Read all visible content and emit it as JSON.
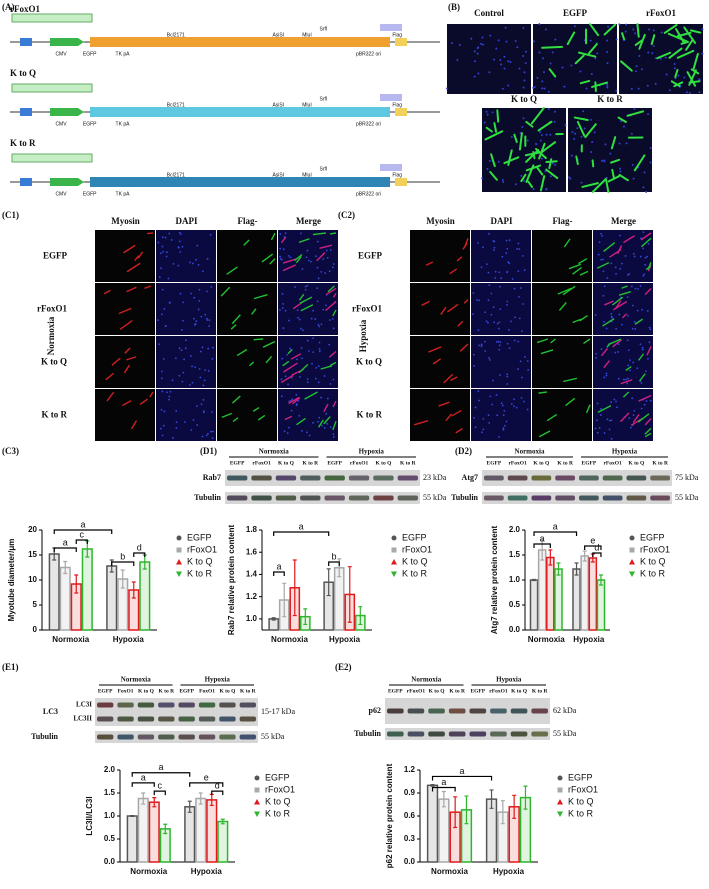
{
  "panel_labels": {
    "A": "(A)",
    "B": "(B)",
    "C1": "(C1)",
    "C2": "(C2)",
    "C3": "(C3)",
    "D1": "(D1)",
    "D2": "(D2)",
    "E1": "(E1)",
    "E2": "(E2)"
  },
  "plasmid_maps": [
    {
      "name": "rFoxO1",
      "features": [
        "Bcl2171",
        "AsiSI",
        "MluI",
        "SrfI",
        "CMV",
        "EGFP",
        "TK pA",
        "pBR322 ori",
        "Flag"
      ]
    },
    {
      "name": "K to Q",
      "features": [
        "Bcl2171",
        "AsiSI",
        "MluI",
        "SrfI",
        "CMV",
        "EGFP",
        "TK pA",
        "pBR322 ori",
        "Flag"
      ]
    },
    {
      "name": "K to R",
      "features": [
        "Bcl2171",
        "AsiSI",
        "MluI",
        "SrfI",
        "CMV",
        "EGFP",
        "TK pA",
        "pBR322 ori",
        "Flag"
      ]
    }
  ],
  "microscopy": {
    "labels": [
      "Control",
      "EGFP",
      "rFoxO1",
      "K to Q",
      "K to R"
    ]
  },
  "immunofluorescence": [
    {
      "condition": "Normoxia",
      "columns": [
        "Myosin",
        "DAPI",
        "Flag-",
        "Merge"
      ],
      "rows": [
        "EGFP",
        "rFoxO1",
        "K to Q",
        "K to R"
      ]
    },
    {
      "condition": "Hypoxia",
      "columns": [
        "Myosin",
        "DAPI",
        "Flag-",
        "Merge"
      ],
      "rows": [
        "EGFP",
        "rFoxO1",
        "K to Q",
        "K to R"
      ]
    }
  ],
  "chart_data": [
    {
      "type": "bar",
      "ylabel": "Myotube diameter/μm",
      "categories": [
        "Normoxia",
        "Hypoxia"
      ],
      "series": [
        {
          "name": "EGFP",
          "color": "#555555",
          "values": [
            15.2,
            12.8
          ],
          "errors": [
            1.2,
            1.2
          ]
        },
        {
          "name": "rFoxO1",
          "color": "#a8a8a8",
          "values": [
            12.5,
            10.2
          ],
          "errors": [
            1.2,
            1.8
          ]
        },
        {
          "name": "K to Q",
          "color": "#e0191b",
          "values": [
            9.2,
            8.0
          ],
          "errors": [
            1.8,
            1.6
          ]
        },
        {
          "name": "K to R",
          "color": "#2db52d",
          "values": [
            16.2,
            13.6
          ],
          "errors": [
            1.6,
            1.4
          ]
        }
      ],
      "ylim": [
        0,
        20
      ],
      "yticks": [
        0,
        5,
        10,
        15,
        20
      ],
      "annotations": [
        "a",
        "a",
        "c",
        "b",
        "d"
      ]
    },
    {
      "type": "bar",
      "ylabel": "Rab7 relative protein content",
      "categories": [
        "Normoxia",
        "Hypoxia"
      ],
      "series": [
        {
          "name": "EGFP",
          "color": "#555555",
          "values": [
            1.0,
            1.33
          ],
          "errors": [
            0.01,
            0.12
          ]
        },
        {
          "name": "rFoxO1",
          "color": "#a8a8a8",
          "values": [
            1.17,
            1.46
          ],
          "errors": [
            0.15,
            0.08
          ]
        },
        {
          "name": "K to Q",
          "color": "#e0191b",
          "values": [
            1.28,
            1.22
          ],
          "errors": [
            0.25,
            0.25
          ]
        },
        {
          "name": "K to R",
          "color": "#2db52d",
          "values": [
            1.02,
            1.03
          ],
          "errors": [
            0.07,
            0.08
          ]
        }
      ],
      "ylim": [
        0.9,
        1.8
      ],
      "yticks": [
        {
          "value": 1.0,
          "label": "1.0"
        },
        1.2,
        1.4,
        1.6,
        1.8
      ],
      "annotations": [
        "a",
        "a",
        "b"
      ],
      "blot": {
        "groups": [
          "Normoxia",
          "Hypoxia"
        ],
        "lanes": [
          "EGFP",
          "rFoxO1",
          "K to Q",
          "K to R",
          "EGFP",
          "rFoxO1",
          "K to Q",
          "K to R"
        ],
        "bands": [
          "Rab7",
          "Tubulin"
        ],
        "sizes": [
          "23 kDa",
          "55 kDa"
        ]
      }
    },
    {
      "type": "bar",
      "ylabel": "Atg7 relative protein content",
      "categories": [
        "Normoxia",
        "Hypoxia"
      ],
      "series": [
        {
          "name": "EGFP",
          "color": "#555555",
          "values": [
            1.0,
            1.22
          ],
          "errors": [
            0.01,
            0.12
          ]
        },
        {
          "name": "rFoxO1",
          "color": "#a8a8a8",
          "values": [
            1.6,
            1.48
          ],
          "errors": [
            0.2,
            0.1
          ]
        },
        {
          "name": "K to Q",
          "color": "#e0191b",
          "values": [
            1.45,
            1.44
          ],
          "errors": [
            0.15,
            0.08
          ]
        },
        {
          "name": "K to R",
          "color": "#2db52d",
          "values": [
            1.22,
            1.0
          ],
          "errors": [
            0.12,
            0.1
          ]
        }
      ],
      "ylim": [
        0,
        2.0
      ],
      "yticks": [
        {
          "value": 0,
          "label": "0.0"
        },
        0.5,
        {
          "value": 1,
          "label": "1.0"
        },
        1.5,
        {
          "value": 2,
          "label": "2.0"
        }
      ],
      "annotations": [
        "a",
        "a",
        "e",
        "d"
      ],
      "blot": {
        "groups": [
          "Normoxia",
          "Hypoxia"
        ],
        "lanes": [
          "EGFP",
          "rFoxO1",
          "K to Q",
          "K to R",
          "EGFP",
          "rFoxO1",
          "K to Q",
          "K to R"
        ],
        "bands": [
          "Atg7",
          "Tubulin"
        ],
        "sizes": [
          "75 kDa",
          "55 kDa"
        ]
      }
    },
    {
      "type": "bar",
      "ylabel": "LC3II/LC3I",
      "categories": [
        "Normoxia",
        "Hypoxia"
      ],
      "series": [
        {
          "name": "EGFP",
          "color": "#555555",
          "values": [
            1.0,
            1.2
          ],
          "errors": [
            0.01,
            0.12
          ]
        },
        {
          "name": "rFoxO1",
          "color": "#a8a8a8",
          "values": [
            1.38,
            1.38
          ],
          "errors": [
            0.12,
            0.12
          ]
        },
        {
          "name": "K to Q",
          "color": "#e0191b",
          "values": [
            1.3,
            1.35
          ],
          "errors": [
            0.1,
            0.12
          ]
        },
        {
          "name": "K to R",
          "color": "#2db52d",
          "values": [
            0.72,
            0.88
          ],
          "errors": [
            0.1,
            0.05
          ]
        }
      ],
      "ylim": [
        0,
        2.0
      ],
      "yticks": [
        {
          "value": 0,
          "label": "0.0"
        },
        0.5,
        {
          "value": 1,
          "label": "1.0"
        },
        1.5,
        {
          "value": 2,
          "label": "2.0"
        }
      ],
      "annotations": [
        "a",
        "a",
        "c",
        "e",
        "d"
      ],
      "blot": {
        "groups": [
          "Normoxia",
          "Hypoxia"
        ],
        "lanes": [
          "EGFP",
          "FoxO1",
          "K to Q",
          "K to R",
          "EGFP",
          "FoxO1",
          "K to Q",
          "K to R"
        ],
        "bands": [
          "LC3",
          "Tubulin"
        ],
        "sublabels": [
          "LC3I",
          "LC3II"
        ],
        "sizes": [
          "15-17 kDa",
          "55 kDa"
        ]
      }
    },
    {
      "type": "bar",
      "ylabel": "p62 relative protein content",
      "categories": [
        "Normoxia",
        "Hypoxia"
      ],
      "series": [
        {
          "name": "EGFP",
          "color": "#555555",
          "values": [
            1.0,
            0.82
          ],
          "errors": [
            0.01,
            0.12
          ]
        },
        {
          "name": "rFoxO1",
          "color": "#a8a8a8",
          "values": [
            0.82,
            0.65
          ],
          "errors": [
            0.1,
            0.15
          ]
        },
        {
          "name": "K to Q",
          "color": "#e0191b",
          "values": [
            0.65,
            0.72
          ],
          "errors": [
            0.2,
            0.15
          ]
        },
        {
          "name": "K to R",
          "color": "#2db52d",
          "values": [
            0.68,
            0.84
          ],
          "errors": [
            0.18,
            0.15
          ]
        }
      ],
      "ylim": [
        0,
        1.2
      ],
      "yticks": [
        {
          "value": 0,
          "label": "0.0"
        },
        0.3,
        0.6,
        0.9,
        1.2
      ],
      "annotations": [
        "a",
        "a"
      ],
      "blot": {
        "groups": [
          "Normoxia",
          "Hypoxia"
        ],
        "lanes": [
          "EGFP",
          "rFoxO1",
          "K to Q",
          "K to R",
          "EGFP",
          "rFoxO1",
          "K to Q",
          "K to R"
        ],
        "bands": [
          "p62",
          "Tubulin"
        ],
        "sizes": [
          "62 kDa",
          "55 kDa"
        ]
      }
    }
  ]
}
